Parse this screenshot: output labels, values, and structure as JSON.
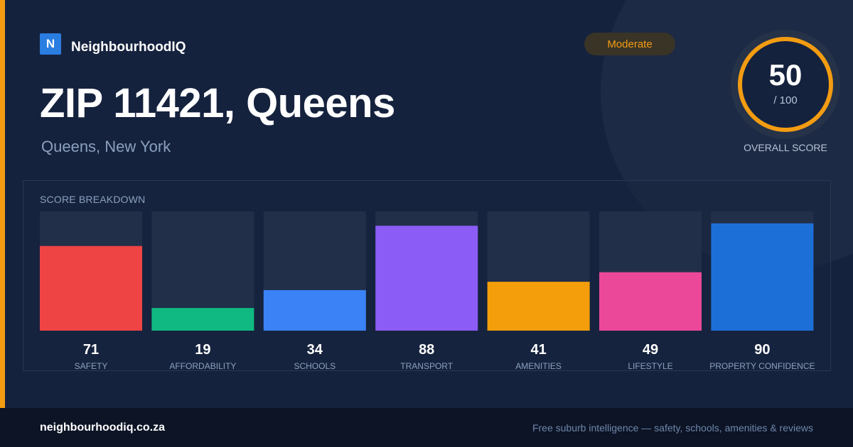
{
  "brand": {
    "logo_letter": "N",
    "name": "NeighbourhoodIQ"
  },
  "header": {
    "title": "ZIP 11421, Queens",
    "subtitle": "Queens, New York"
  },
  "badge": {
    "label": "Moderate"
  },
  "overall": {
    "value": "50",
    "max_label": "/ 100",
    "label": "OVERALL SCORE"
  },
  "breakdown": {
    "title": "SCORE BREAKDOWN"
  },
  "chart_data": {
    "type": "bar",
    "categories": [
      "SAFETY",
      "AFFORDABILITY",
      "SCHOOLS",
      "TRANSPORT",
      "AMENITIES",
      "LIFESTYLE",
      "PROPERTY CONFIDENCE"
    ],
    "values": [
      71,
      19,
      34,
      88,
      41,
      49,
      90
    ],
    "colors": [
      "#ef4444",
      "#10b981",
      "#3b82f6",
      "#8b5cf6",
      "#f59e0b",
      "#ec4899",
      "#1d6fd8"
    ],
    "ylim": [
      0,
      100
    ],
    "title": "SCORE BREAKDOWN",
    "xlabel": "",
    "ylabel": ""
  },
  "footer": {
    "url": "neighbourhoodiq.co.za",
    "tagline": "Free suburb intelligence — safety, schools, amenities & reviews"
  },
  "colors": {
    "accent": "#f39c12",
    "background": "#15223e",
    "footer": "#0c1426"
  }
}
